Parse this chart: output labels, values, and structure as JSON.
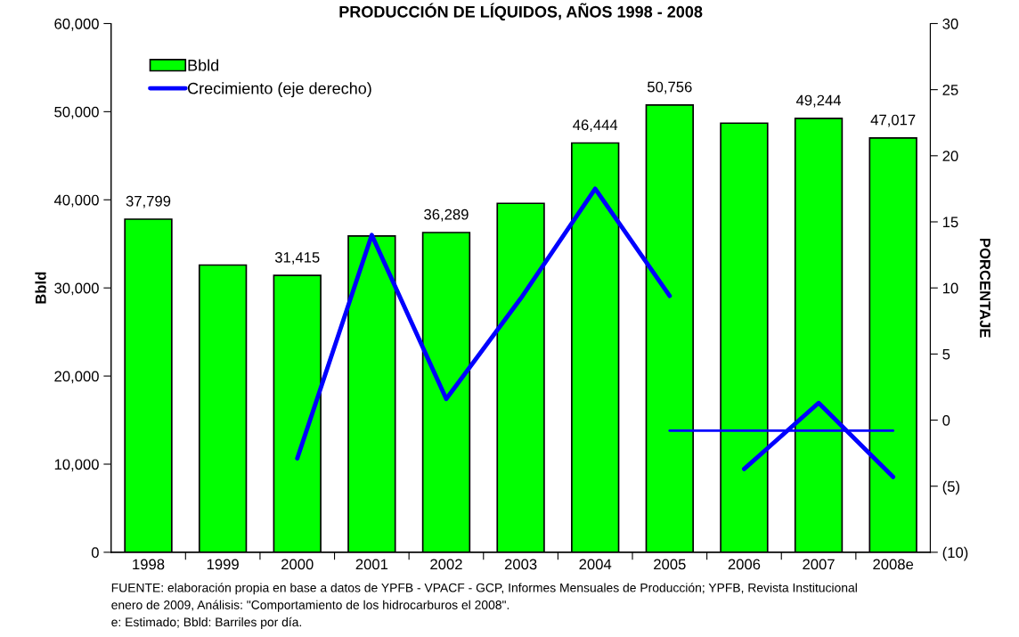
{
  "chart_data": {
    "type": "bar",
    "title": "PRODUCCIÓN DE LÍQUIDOS, AÑOS 1998 - 2008",
    "ylabel": "Bbld",
    "y2label": "PORCENTAJE",
    "categories": [
      "1998",
      "1999",
      "2000",
      "2001",
      "2002",
      "2003",
      "2004",
      "2005",
      "2006",
      "2007",
      "2008e"
    ],
    "series": [
      {
        "name": "Bbld",
        "color": "#00ff00",
        "values": [
          37799,
          32600,
          31415,
          35900,
          36289,
          39600,
          46444,
          50756,
          48700,
          49244,
          47017
        ],
        "value_labels": [
          "37,799",
          null,
          "31,415",
          null,
          "36,289",
          null,
          "46,444",
          "50,756",
          null,
          "49,244",
          "47,017"
        ]
      },
      {
        "name": "Crecimiento (eje derecho)",
        "type": "line",
        "axis": "y2",
        "color": "#0000ff",
        "values": [
          null,
          null,
          -2.9,
          14.0,
          1.6,
          9.2,
          17.5,
          9.4,
          null,
          null,
          null
        ]
      },
      {
        "type": "line",
        "axis": "y2",
        "color": "#0000ff",
        "values": [
          null,
          null,
          null,
          null,
          null,
          null,
          null,
          null,
          -3.7,
          1.3,
          -4.3
        ]
      },
      {
        "type": "line",
        "axis": "y2",
        "color": "#0000ff",
        "values": [
          null,
          null,
          null,
          null,
          null,
          null,
          null,
          -0.8,
          -0.8,
          -0.8,
          -0.8
        ]
      }
    ],
    "ylim": [
      0,
      60000
    ],
    "yticks": [
      {
        "value": 0,
        "label": "0"
      },
      {
        "value": 10000,
        "label": "10,000"
      },
      {
        "value": 20000,
        "label": "20,000"
      },
      {
        "value": 30000,
        "label": "30,000"
      },
      {
        "value": 40000,
        "label": "40,000"
      },
      {
        "value": 50000,
        "label": "50,000"
      },
      {
        "value": 60000,
        "label": "60,000"
      }
    ],
    "y2lim": [
      -10,
      30
    ],
    "y2ticks": [
      {
        "value": -10,
        "label": "(10)"
      },
      {
        "value": -5,
        "label": "(5)"
      },
      0,
      5,
      10,
      15,
      20,
      25,
      30
    ],
    "legend": "top left",
    "grid": false,
    "annotations": [
      "FUENTE: elaboración propia en base a datos de YPFB - VPACF - GCP, Informes Mensuales de Producción; YPFB, Revista Institucional",
      "enero de 2009, Análisis: \"Comportamiento de los hidrocarburos el 2008\".",
      "e: Estimado; Bbld: Barriles por día."
    ]
  }
}
